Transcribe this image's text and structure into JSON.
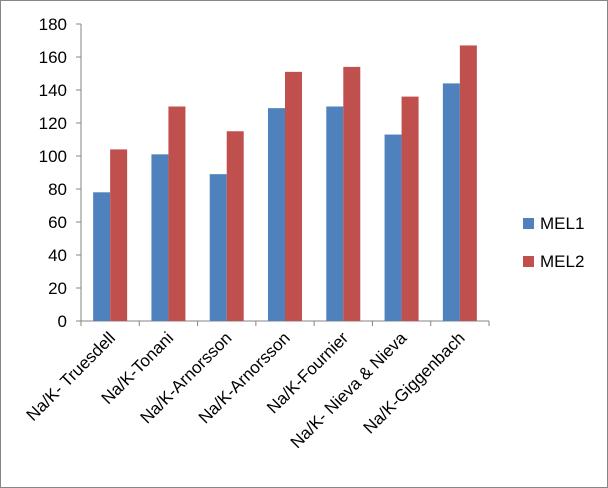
{
  "chart_data": {
    "type": "bar",
    "categories": [
      "Na/K- Truesdell",
      "Na/K-Tonani",
      "Na/K-Arnorsson",
      "Na/K-Arnorsson",
      "Na/K-Fournier",
      "Na/K- Nieva & Nieva",
      "Na/K-Giggenbach"
    ],
    "series": [
      {
        "name": "MEL1",
        "color": "#4F81BD",
        "values": [
          78,
          101,
          89,
          129,
          130,
          113,
          144
        ]
      },
      {
        "name": "MEL2",
        "color": "#C0504D",
        "values": [
          104,
          130,
          115,
          151,
          154,
          136,
          167
        ]
      }
    ],
    "yticks": [
      0,
      20,
      40,
      60,
      80,
      100,
      120,
      140,
      160,
      180
    ],
    "ylim": [
      0,
      180
    ],
    "grid": false,
    "legend_position": "right",
    "title": "",
    "xlabel": "",
    "ylabel": ""
  }
}
